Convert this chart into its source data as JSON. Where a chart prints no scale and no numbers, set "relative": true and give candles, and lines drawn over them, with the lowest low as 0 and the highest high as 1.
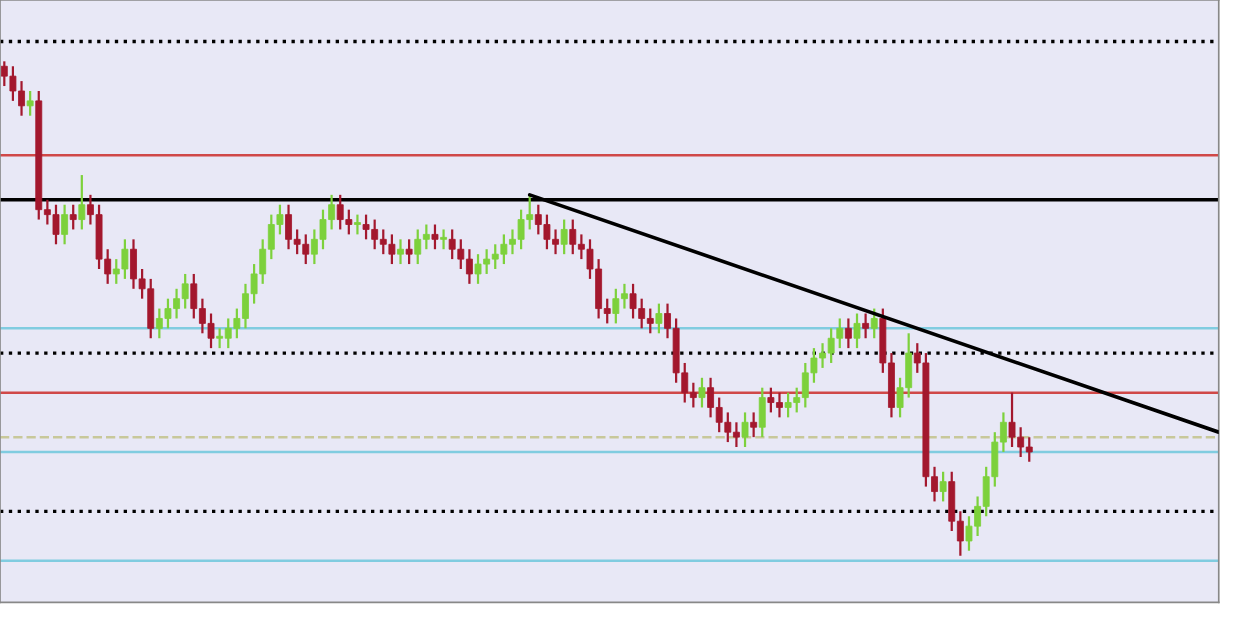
{
  "chart_data": {
    "type": "candlestick",
    "relative": true,
    "categories": [
      null,
      null,
      null,
      null,
      null,
      null,
      null,
      null,
      null,
      null,
      null,
      null,
      null,
      null,
      null,
      null,
      null,
      null,
      null,
      null,
      null,
      null,
      null,
      null,
      null,
      null,
      null,
      null,
      null,
      null,
      null,
      null,
      null,
      null,
      null,
      null,
      null,
      null,
      null,
      null,
      null,
      null,
      null,
      null,
      null,
      null,
      null,
      null,
      null,
      null,
      null,
      null,
      null,
      null,
      null,
      null,
      null,
      null,
      null,
      null,
      null,
      null,
      null,
      null,
      null,
      null,
      null,
      null,
      null,
      null,
      null,
      null,
      null,
      null,
      null,
      null,
      null,
      null,
      null,
      null,
      null,
      null,
      null,
      null,
      null,
      null,
      null,
      null,
      null,
      null,
      null,
      null,
      null,
      null,
      null,
      null,
      null,
      null,
      null,
      null,
      null,
      null,
      null,
      null,
      null,
      null,
      null,
      null,
      null,
      null,
      null,
      null,
      null,
      null,
      null,
      null,
      null,
      null,
      null,
      null,
      null,
      null,
      null,
      null,
      null,
      null,
      null,
      null,
      null,
      null,
      null,
      null,
      null,
      null,
      null,
      null,
      null,
      null,
      null,
      null,
      null,
      null
    ],
    "ohlc": [
      [
        0.99,
        1.0,
        0.95,
        0.97
      ],
      [
        0.97,
        0.99,
        0.92,
        0.94
      ],
      [
        0.94,
        0.96,
        0.89,
        0.91
      ],
      [
        0.91,
        0.94,
        0.89,
        0.92
      ],
      [
        0.92,
        0.94,
        0.68,
        0.7
      ],
      [
        0.7,
        0.72,
        0.67,
        0.69
      ],
      [
        0.69,
        0.71,
        0.63,
        0.65
      ],
      [
        0.65,
        0.71,
        0.63,
        0.69
      ],
      [
        0.69,
        0.71,
        0.66,
        0.68
      ],
      [
        0.68,
        0.77,
        0.66,
        0.71
      ],
      [
        0.71,
        0.73,
        0.67,
        0.69
      ],
      [
        0.69,
        0.71,
        0.58,
        0.6
      ],
      [
        0.6,
        0.62,
        0.55,
        0.57
      ],
      [
        0.57,
        0.6,
        0.55,
        0.58
      ],
      [
        0.58,
        0.64,
        0.56,
        0.62
      ],
      [
        0.62,
        0.64,
        0.54,
        0.56
      ],
      [
        0.56,
        0.58,
        0.52,
        0.54
      ],
      [
        0.54,
        0.56,
        0.44,
        0.46
      ],
      [
        0.46,
        0.5,
        0.44,
        0.48
      ],
      [
        0.48,
        0.52,
        0.46,
        0.5
      ],
      [
        0.5,
        0.54,
        0.48,
        0.52
      ],
      [
        0.52,
        0.57,
        0.5,
        0.55
      ],
      [
        0.55,
        0.57,
        0.48,
        0.5
      ],
      [
        0.5,
        0.52,
        0.45,
        0.47
      ],
      [
        0.47,
        0.49,
        0.42,
        0.44
      ],
      [
        0.44,
        0.46,
        0.42,
        0.44
      ],
      [
        0.44,
        0.48,
        0.42,
        0.46
      ],
      [
        0.46,
        0.5,
        0.44,
        0.48
      ],
      [
        0.48,
        0.55,
        0.46,
        0.53
      ],
      [
        0.53,
        0.59,
        0.51,
        0.57
      ],
      [
        0.57,
        0.64,
        0.55,
        0.62
      ],
      [
        0.62,
        0.69,
        0.6,
        0.67
      ],
      [
        0.67,
        0.71,
        0.65,
        0.69
      ],
      [
        0.69,
        0.71,
        0.62,
        0.64
      ],
      [
        0.64,
        0.66,
        0.61,
        0.63
      ],
      [
        0.63,
        0.65,
        0.59,
        0.61
      ],
      [
        0.61,
        0.66,
        0.59,
        0.64
      ],
      [
        0.64,
        0.7,
        0.62,
        0.68
      ],
      [
        0.68,
        0.73,
        0.66,
        0.71
      ],
      [
        0.71,
        0.73,
        0.66,
        0.68
      ],
      [
        0.68,
        0.7,
        0.65,
        0.67
      ],
      [
        0.67,
        0.69,
        0.65,
        0.67
      ],
      [
        0.67,
        0.69,
        0.64,
        0.66
      ],
      [
        0.66,
        0.68,
        0.62,
        0.64
      ],
      [
        0.64,
        0.66,
        0.61,
        0.63
      ],
      [
        0.63,
        0.65,
        0.59,
        0.61
      ],
      [
        0.61,
        0.64,
        0.59,
        0.62
      ],
      [
        0.62,
        0.64,
        0.59,
        0.61
      ],
      [
        0.61,
        0.66,
        0.59,
        0.64
      ],
      [
        0.64,
        0.67,
        0.62,
        0.65
      ],
      [
        0.65,
        0.67,
        0.62,
        0.64
      ],
      [
        0.64,
        0.66,
        0.62,
        0.64
      ],
      [
        0.64,
        0.66,
        0.6,
        0.62
      ],
      [
        0.62,
        0.64,
        0.58,
        0.6
      ],
      [
        0.6,
        0.62,
        0.55,
        0.57
      ],
      [
        0.57,
        0.61,
        0.55,
        0.59
      ],
      [
        0.59,
        0.62,
        0.57,
        0.6
      ],
      [
        0.6,
        0.63,
        0.58,
        0.61
      ],
      [
        0.61,
        0.65,
        0.59,
        0.63
      ],
      [
        0.63,
        0.66,
        0.61,
        0.64
      ],
      [
        0.64,
        0.7,
        0.62,
        0.68
      ],
      [
        0.68,
        0.73,
        0.66,
        0.69
      ],
      [
        0.69,
        0.71,
        0.65,
        0.67
      ],
      [
        0.67,
        0.69,
        0.62,
        0.64
      ],
      [
        0.64,
        0.66,
        0.61,
        0.63
      ],
      [
        0.63,
        0.68,
        0.61,
        0.66
      ],
      [
        0.66,
        0.68,
        0.61,
        0.63
      ],
      [
        0.63,
        0.65,
        0.6,
        0.62
      ],
      [
        0.62,
        0.64,
        0.56,
        0.58
      ],
      [
        0.58,
        0.6,
        0.48,
        0.5
      ],
      [
        0.5,
        0.52,
        0.47,
        0.49
      ],
      [
        0.49,
        0.54,
        0.47,
        0.52
      ],
      [
        0.52,
        0.55,
        0.5,
        0.53
      ],
      [
        0.53,
        0.55,
        0.48,
        0.5
      ],
      [
        0.5,
        0.52,
        0.46,
        0.48
      ],
      [
        0.48,
        0.5,
        0.45,
        0.47
      ],
      [
        0.47,
        0.51,
        0.45,
        0.49
      ],
      [
        0.49,
        0.51,
        0.44,
        0.46
      ],
      [
        0.46,
        0.48,
        0.35,
        0.37
      ],
      [
        0.37,
        0.39,
        0.31,
        0.33
      ],
      [
        0.33,
        0.35,
        0.3,
        0.32
      ],
      [
        0.32,
        0.36,
        0.3,
        0.34
      ],
      [
        0.34,
        0.36,
        0.28,
        0.3
      ],
      [
        0.3,
        0.32,
        0.25,
        0.27
      ],
      [
        0.27,
        0.29,
        0.23,
        0.25
      ],
      [
        0.25,
        0.27,
        0.22,
        0.24
      ],
      [
        0.24,
        0.29,
        0.22,
        0.27
      ],
      [
        0.27,
        0.29,
        0.24,
        0.26
      ],
      [
        0.26,
        0.34,
        0.24,
        0.32
      ],
      [
        0.32,
        0.34,
        0.29,
        0.31
      ],
      [
        0.31,
        0.33,
        0.28,
        0.3
      ],
      [
        0.3,
        0.33,
        0.28,
        0.31
      ],
      [
        0.31,
        0.34,
        0.29,
        0.32
      ],
      [
        0.32,
        0.39,
        0.3,
        0.37
      ],
      [
        0.37,
        0.42,
        0.35,
        0.4
      ],
      [
        0.4,
        0.43,
        0.38,
        0.41
      ],
      [
        0.41,
        0.46,
        0.39,
        0.44
      ],
      [
        0.44,
        0.48,
        0.42,
        0.46
      ],
      [
        0.46,
        0.48,
        0.42,
        0.44
      ],
      [
        0.44,
        0.49,
        0.42,
        0.47
      ],
      [
        0.47,
        0.49,
        0.44,
        0.46
      ],
      [
        0.46,
        0.5,
        0.44,
        0.48
      ],
      [
        0.48,
        0.5,
        0.37,
        0.39
      ],
      [
        0.39,
        0.41,
        0.28,
        0.3
      ],
      [
        0.3,
        0.36,
        0.28,
        0.34
      ],
      [
        0.34,
        0.45,
        0.32,
        0.41
      ],
      [
        0.41,
        0.43,
        0.37,
        0.39
      ],
      [
        0.39,
        0.41,
        0.14,
        0.16
      ],
      [
        0.16,
        0.18,
        0.11,
        0.13
      ],
      [
        0.13,
        0.17,
        0.11,
        0.15
      ],
      [
        0.15,
        0.17,
        0.05,
        0.07
      ],
      [
        0.07,
        0.09,
        0.0,
        0.03
      ],
      [
        0.03,
        0.08,
        0.01,
        0.06
      ],
      [
        0.06,
        0.12,
        0.04,
        0.1
      ],
      [
        0.1,
        0.18,
        0.08,
        0.16
      ],
      [
        0.16,
        0.25,
        0.14,
        0.23
      ],
      [
        0.23,
        0.29,
        0.21,
        0.27
      ],
      [
        0.27,
        0.33,
        0.22,
        0.24
      ],
      [
        0.24,
        0.26,
        0.2,
        0.22
      ],
      [
        0.22,
        0.24,
        0.19,
        0.21
      ],
      null,
      null,
      null,
      null,
      null,
      null,
      null,
      null,
      null,
      null,
      null,
      null,
      null,
      null,
      null,
      null,
      null,
      null,
      null,
      null,
      null,
      null
    ],
    "series": [
      {
        "type": "line",
        "values": [
          null,
          null,
          null,
          null,
          null,
          null,
          null,
          null,
          null,
          null,
          null,
          null,
          null,
          null,
          null,
          null,
          null,
          null,
          null,
          null,
          null,
          null,
          null,
          null,
          null,
          null,
          null,
          null,
          null,
          null,
          null,
          null,
          null,
          null,
          null,
          null,
          null,
          null,
          null,
          null,
          null,
          null,
          null,
          null,
          null,
          null,
          null,
          null,
          null,
          null,
          null,
          null,
          null,
          null,
          null,
          null,
          null,
          null,
          null,
          null,
          null,
          0.73,
          null,
          null,
          null,
          null,
          null,
          null,
          null,
          null,
          null,
          null,
          null,
          null,
          null,
          null,
          null,
          null,
          null,
          null,
          null,
          null,
          null,
          null,
          null,
          null,
          null,
          null,
          null,
          null,
          null,
          null,
          null,
          null,
          null,
          null,
          null,
          null,
          null,
          null,
          null,
          null,
          null,
          null,
          null,
          null,
          null,
          null,
          null,
          null,
          null,
          null,
          null,
          null,
          null,
          null,
          null,
          null,
          null,
          null,
          null,
          null,
          null,
          null,
          null,
          null,
          null,
          null,
          null,
          null,
          null,
          null,
          null,
          null,
          null,
          null,
          null,
          null,
          null,
          null,
          null,
          0.25
        ],
        "color": "#000000"
      }
    ],
    "ref_lines": [
      {
        "axis": "y",
        "value": 1.04,
        "color": "#000000",
        "line_style": "dotted"
      },
      {
        "axis": "y",
        "value": 0.81,
        "color": "#d04848"
      },
      {
        "axis": "y",
        "value": 0.72,
        "color": "#000000"
      },
      {
        "axis": "y",
        "value": 0.46,
        "color": "#80cce0"
      },
      {
        "axis": "y",
        "value": 0.41,
        "color": "#000000",
        "line_style": "dotted"
      },
      {
        "axis": "y",
        "value": 0.33,
        "color": "#d04848"
      },
      {
        "axis": "y",
        "value": 0.24,
        "color": "#c8c89a",
        "line_style": "dashed"
      },
      {
        "axis": "y",
        "value": 0.21,
        "color": "#80cce0"
      },
      {
        "axis": "y",
        "value": 0.09,
        "color": "#000000",
        "line_style": "dotted"
      },
      {
        "axis": "y",
        "value": -0.01,
        "color": "#80cce0"
      }
    ]
  }
}
